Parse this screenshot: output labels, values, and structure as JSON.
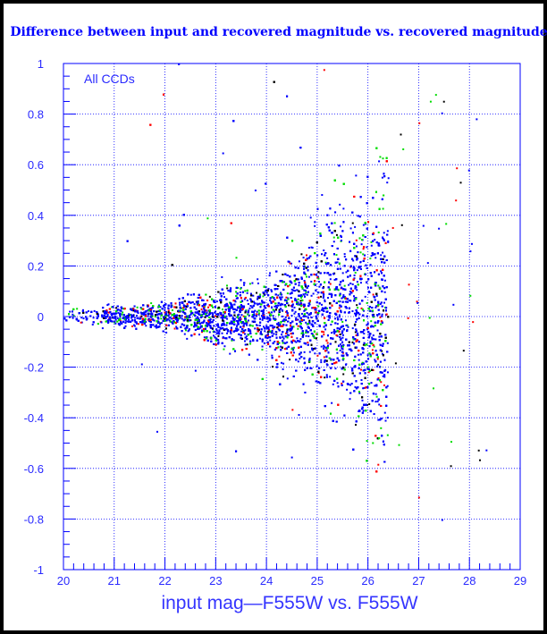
{
  "chart_data": {
    "type": "scatter",
    "title": "Difference between input and recovered magnitude vs. recovered magnitude",
    "xlabel": "input mag—F555W vs. F555W",
    "ylabel": "",
    "annotation": "All CCDs",
    "xlim": [
      20,
      29
    ],
    "ylim": [
      -1,
      1
    ],
    "x_ticks": [
      "20",
      "21",
      "22",
      "23",
      "24",
      "25",
      "26",
      "27",
      "28",
      "29"
    ],
    "y_ticks": [
      "-1",
      "-0.8",
      "-0.6",
      "-0.4",
      "-0.2",
      "0",
      "0.2",
      "0.4",
      "0.6",
      "0.8",
      "1"
    ],
    "grid": true,
    "colors": {
      "background": "#ffffff",
      "axes": "#0000ff",
      "grid": "#0000ff",
      "point_colors": [
        "#0000ff",
        "#00dd00",
        "#ff0000",
        "#000000"
      ]
    },
    "series": [
      {
        "values": [
          {
            "x": 20.0,
            "y": 0.0,
            "spread": 0.015
          },
          {
            "x": 21.0,
            "y": 0.0,
            "spread": 0.02
          },
          {
            "x": 22.0,
            "y": 0.0,
            "spread": 0.03
          },
          {
            "x": 23.0,
            "y": 0.0,
            "spread": 0.05
          },
          {
            "x": 24.0,
            "y": 0.0,
            "spread": 0.08
          },
          {
            "x": 25.0,
            "y": 0.0,
            "spread": 0.14
          },
          {
            "x": 26.0,
            "y": 0.02,
            "spread": 0.22
          },
          {
            "x": 26.4,
            "y": 0.02,
            "spread": 0.28
          }
        ]
      }
    ]
  }
}
